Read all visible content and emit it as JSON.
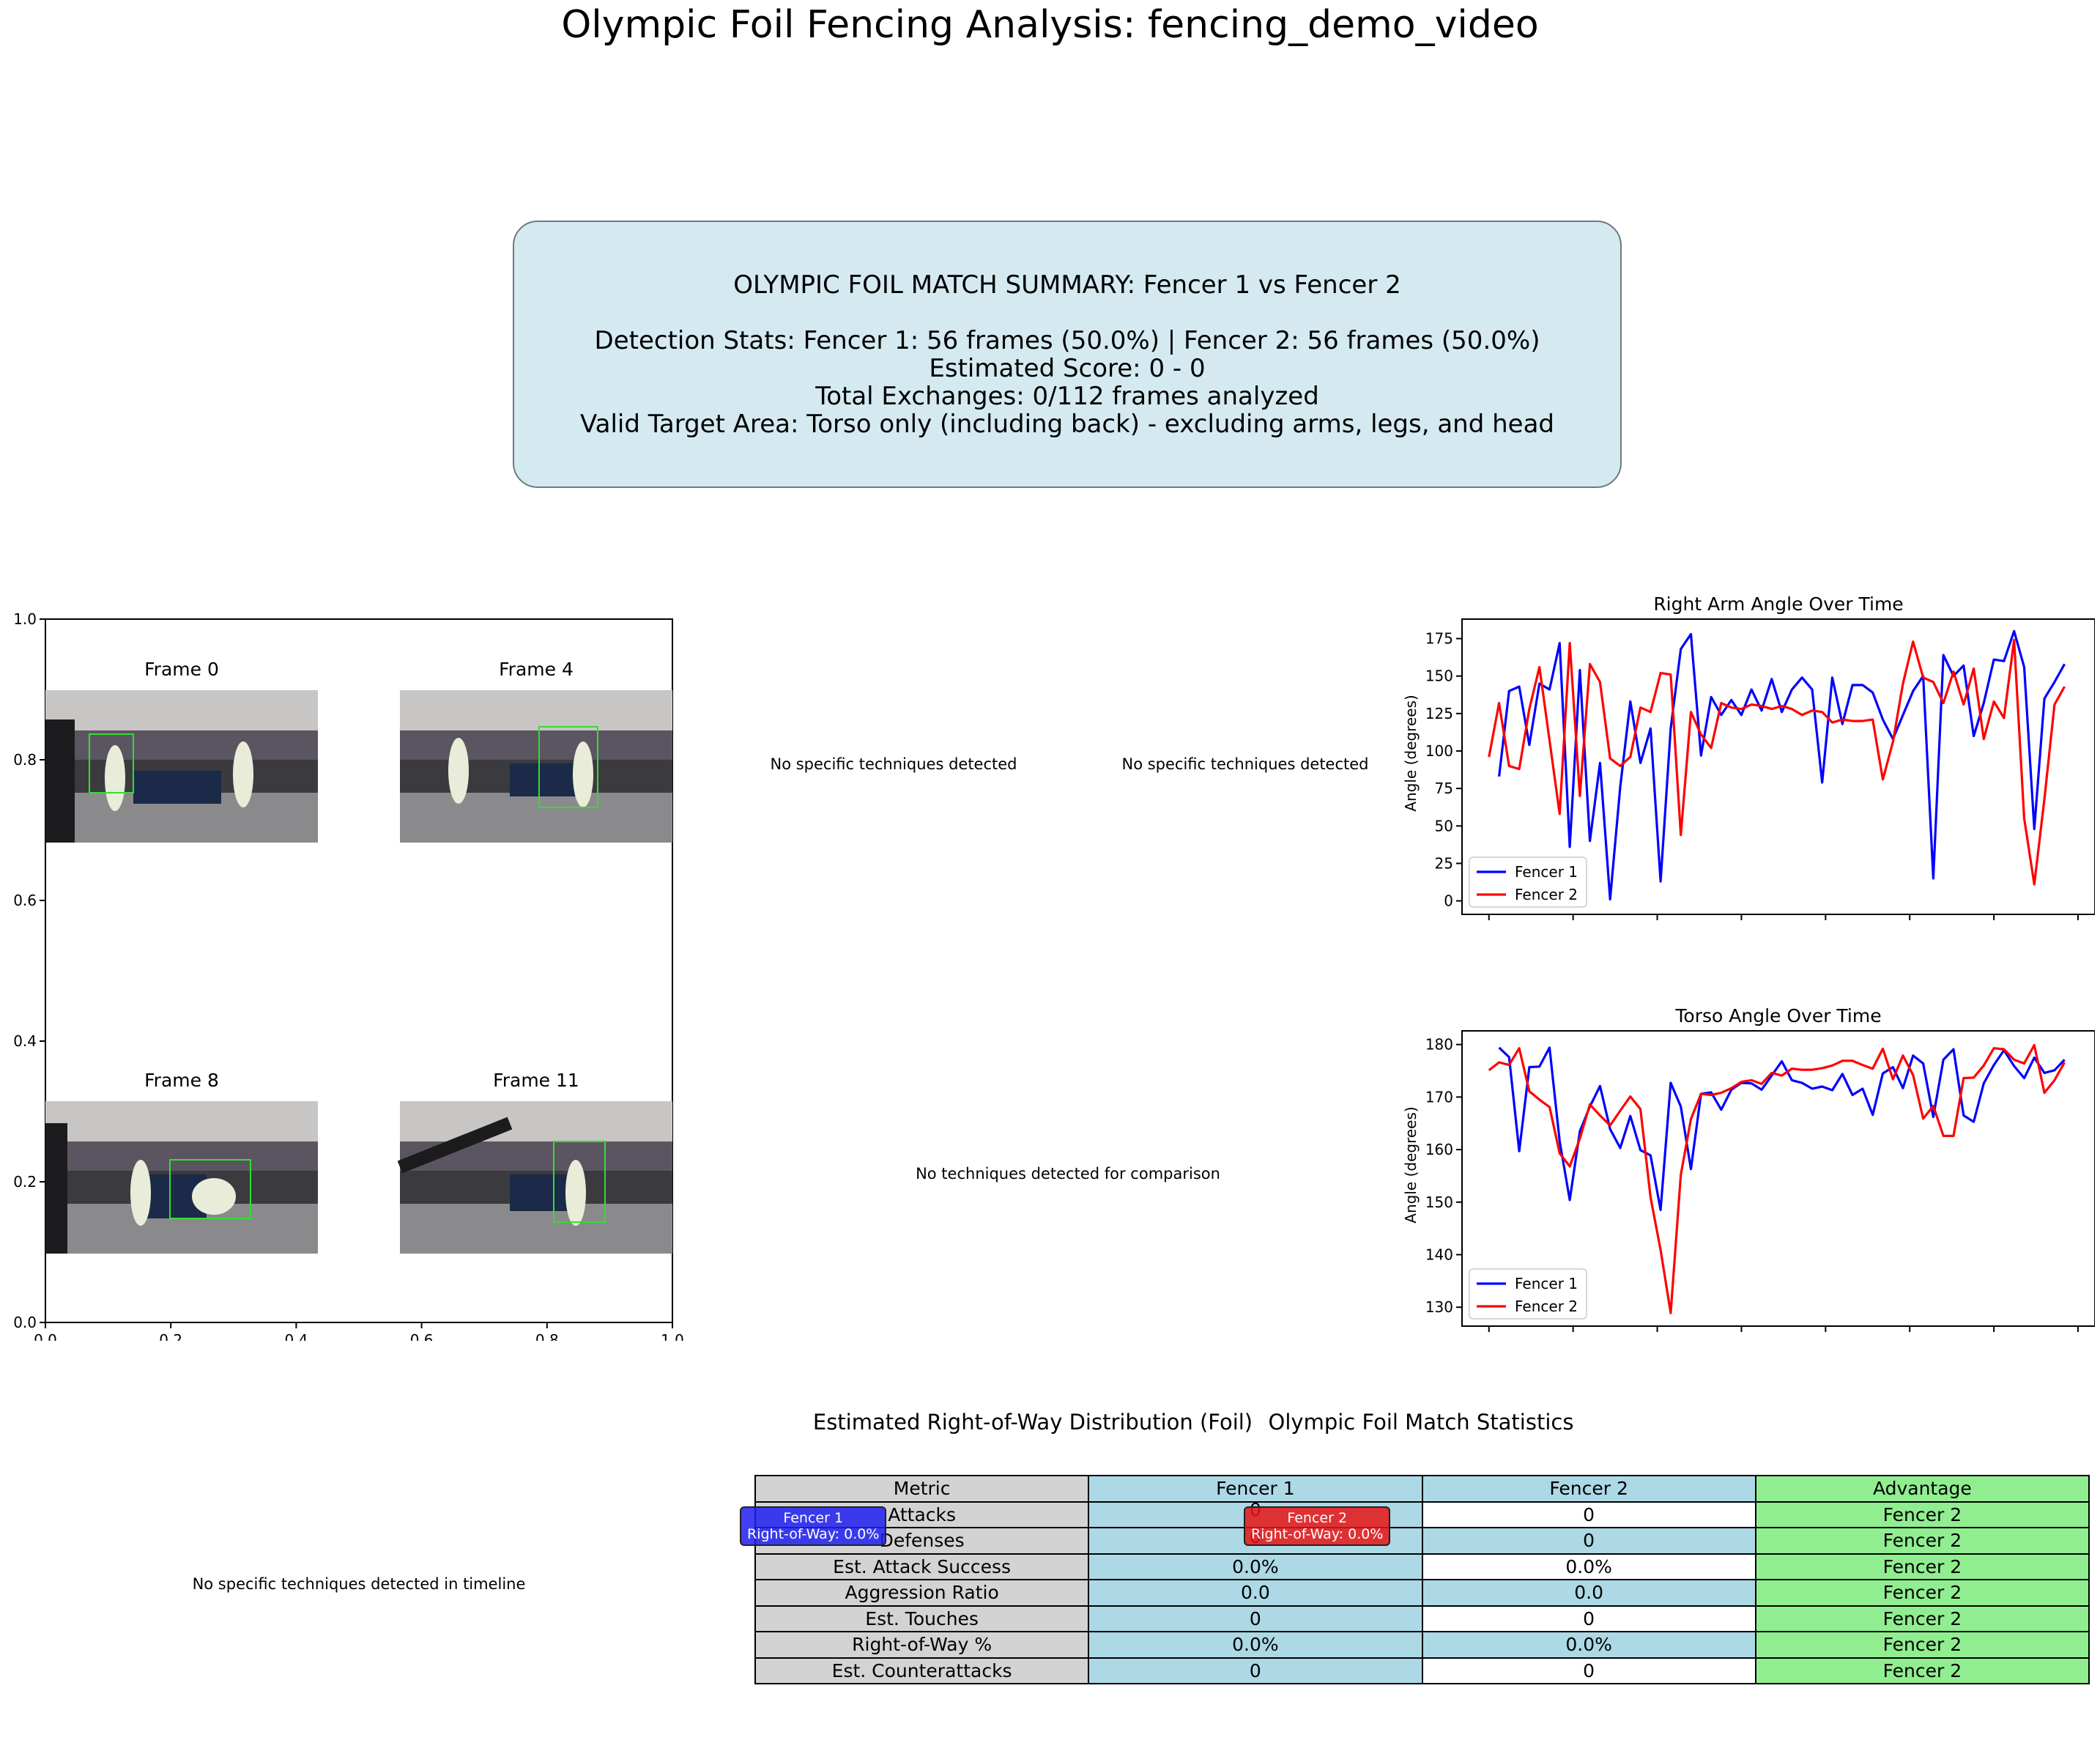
{
  "figure": {
    "title": "Olympic Foil Fencing Analysis: fencing_demo_video"
  },
  "summary": {
    "heading": "OLYMPIC FOIL MATCH SUMMARY:   Fencer 1 vs Fencer 2",
    "detection": "Detection Stats:  Fencer 1: 56 frames (50.0%)   |   Fencer 2: 56 frames (50.0%)",
    "score": "Estimated Score: 0 - 0",
    "exchanges": "Total Exchanges: 0/112 frames analyzed",
    "target": "Valid Target Area: Torso only (including back) - excluding arms, legs, and head"
  },
  "frames_panel": {
    "frames": [
      {
        "label": "Frame 0"
      },
      {
        "label": "Frame 4"
      },
      {
        "label": "Frame 8"
      },
      {
        "label": "Frame 11"
      }
    ],
    "x_ticks": [
      "0.0",
      "0.2",
      "0.4",
      "0.6",
      "0.8",
      "1.0"
    ],
    "y_ticks": [
      "0.0",
      "0.2",
      "0.4",
      "0.6",
      "0.8",
      "1.0"
    ]
  },
  "technique_panels": {
    "fencer1_text": "No specific techniques detected",
    "fencer2_text": "No specific techniques detected",
    "comparison_text": "No techniques detected for comparison",
    "timeline_text": "No specific techniques detected in timeline"
  },
  "row_chart": {
    "title": "Estimated Right-of-Way Distribution (Foil)",
    "badge1_line1": "Fencer 1",
    "badge1_line2": "Right-of-Way: 0.0%",
    "badge2_line1": "Fencer 2",
    "badge2_line2": "Right-of-Way: 0.0%",
    "stray_zero_1": "0",
    "stray_zero_2": "0"
  },
  "stats_table": {
    "title": "Olympic Foil Match Statistics",
    "header": [
      "Metric",
      "Fencer 1",
      "Fencer 2",
      "Advantage"
    ],
    "rows": [
      [
        "Attacks",
        "0",
        "0",
        "Fencer 2"
      ],
      [
        "Defenses",
        "0",
        "0",
        "Fencer 2"
      ],
      [
        "Est. Attack Success",
        "0.0%",
        "0.0%",
        "Fencer 2"
      ],
      [
        "Aggression Ratio",
        "0.0",
        "0.0",
        "Fencer 2"
      ],
      [
        "Est. Touches",
        "0",
        "0",
        "Fencer 2"
      ],
      [
        "Right-of-Way %",
        "0.0%",
        "0.0%",
        "Fencer 2"
      ],
      [
        "Est. Counterattacks",
        "0",
        "0",
        "Fencer 2"
      ]
    ]
  },
  "colors": {
    "fencer1": "#0000ff",
    "fencer2": "#ff0000"
  },
  "chart_data": [
    {
      "type": "line",
      "title": "Right Arm Angle Over Time",
      "xlabel": "",
      "ylabel": "Angle (degrees)",
      "xlim": [
        -8,
        180
      ],
      "ylim": [
        -9,
        188
      ],
      "x_ticks": [
        0,
        25,
        50,
        75,
        100,
        125,
        150,
        175
      ],
      "y_ticks": [
        0,
        25,
        50,
        75,
        100,
        125,
        150,
        175
      ],
      "legend": "lower-left",
      "series": [
        {
          "name": "Fencer 1",
          "color": "#0000ff",
          "x": [
            3,
            6,
            9,
            12,
            15,
            18,
            21,
            24,
            27,
            30,
            33,
            36,
            39,
            42,
            45,
            48,
            51,
            54,
            57,
            60,
            63,
            66,
            69,
            72,
            75,
            78,
            81,
            84,
            87,
            90,
            93,
            96,
            99,
            102,
            105,
            108,
            111,
            114,
            117,
            120,
            123,
            126,
            129,
            132,
            135,
            138,
            141,
            144,
            147,
            150,
            153,
            156,
            159,
            162,
            165,
            168,
            171
          ],
          "y": [
            83,
            140,
            143,
            104,
            145,
            141,
            172,
            36,
            154,
            40,
            92,
            1,
            76,
            133,
            92,
            115,
            13,
            115,
            168,
            178,
            97,
            136,
            124,
            134,
            124,
            141,
            127,
            148,
            126,
            141,
            149,
            141,
            79,
            149,
            118,
            144,
            144,
            139,
            121,
            108,
            124,
            140,
            150,
            15,
            164,
            150,
            157,
            110,
            132,
            161,
            160,
            180,
            156,
            48,
            135,
            146,
            158
          ]
        },
        {
          "name": "Fencer 2",
          "color": "#ff0000",
          "x": [
            0,
            3,
            6,
            9,
            12,
            15,
            18,
            21,
            24,
            27,
            30,
            33,
            36,
            39,
            42,
            45,
            48,
            51,
            54,
            57,
            60,
            63,
            66,
            69,
            72,
            75,
            78,
            81,
            84,
            87,
            90,
            93,
            96,
            99,
            102,
            105,
            108,
            111,
            114,
            117,
            120,
            123,
            126,
            129,
            132,
            135,
            138,
            141,
            144,
            147,
            150,
            153,
            156,
            159,
            162,
            165,
            168,
            171
          ],
          "y": [
            96,
            132,
            90,
            88,
            128,
            156,
            107,
            58,
            172,
            70,
            158,
            146,
            95,
            90,
            96,
            129,
            126,
            152,
            151,
            44,
            126,
            111,
            102,
            132,
            129,
            128,
            131,
            130,
            128,
            130,
            128,
            124,
            127,
            126,
            119,
            121,
            120,
            120,
            121,
            81,
            106,
            145,
            173,
            149,
            146,
            132,
            153,
            131,
            155,
            108,
            133,
            122,
            174,
            55,
            11,
            68,
            131,
            143
          ]
        }
      ]
    },
    {
      "type": "line",
      "title": "Torso Angle Over Time",
      "xlabel": "",
      "ylabel": "Angle (degrees)",
      "xlim": [
        -8,
        180
      ],
      "ylim": [
        126.4,
        182.6
      ],
      "x_ticks": [
        0,
        25,
        50,
        75,
        100,
        125,
        150,
        175
      ],
      "y_ticks": [
        130,
        140,
        150,
        160,
        170,
        180
      ],
      "legend": "lower-left",
      "series": [
        {
          "name": "Fencer 1",
          "color": "#0000ff",
          "x": [
            3,
            6,
            9,
            12,
            15,
            18,
            21,
            24,
            27,
            30,
            33,
            36,
            39,
            42,
            45,
            48,
            51,
            54,
            57,
            60,
            63,
            66,
            69,
            72,
            75,
            78,
            81,
            84,
            87,
            90,
            93,
            96,
            99,
            102,
            105,
            108,
            111,
            114,
            117,
            120,
            123,
            126,
            129,
            132,
            135,
            138,
            141,
            144,
            147,
            150,
            153,
            156,
            159,
            162,
            165,
            168,
            171
          ],
          "y": [
            179.4,
            177.6,
            159.7,
            175.7,
            175.8,
            179.4,
            161.6,
            150.4,
            163.5,
            168.2,
            172.1,
            163.9,
            160.3,
            166.4,
            159.9,
            158.9,
            148.5,
            172.7,
            168.2,
            156.3,
            170.6,
            170.9,
            167.6,
            171.4,
            172.7,
            172.6,
            171.4,
            174.1,
            176.8,
            173.2,
            172.7,
            171.6,
            172.0,
            171.3,
            174.4,
            170.4,
            171.6,
            166.6,
            174.5,
            175.7,
            171.7,
            177.9,
            176.4,
            166.2,
            177.1,
            179.1,
            166.5,
            165.3,
            172.6,
            176.1,
            178.9,
            175.9,
            173.6,
            177.5,
            174.6,
            175.1,
            177.1
          ]
        },
        {
          "name": "Fencer 2",
          "color": "#ff0000",
          "x": [
            0,
            3,
            6,
            9,
            12,
            15,
            18,
            21,
            24,
            27,
            30,
            33,
            36,
            39,
            42,
            45,
            48,
            51,
            54,
            57,
            60,
            63,
            66,
            69,
            72,
            75,
            78,
            81,
            84,
            87,
            90,
            93,
            96,
            99,
            102,
            105,
            108,
            111,
            114,
            117,
            120,
            123,
            126,
            129,
            132,
            135,
            138,
            141,
            144,
            147,
            150,
            153,
            156,
            159,
            162,
            165,
            168,
            171
          ],
          "y": [
            175.1,
            176.6,
            176.1,
            179.3,
            171.1,
            169.5,
            168.1,
            159.3,
            156.8,
            162.1,
            168.6,
            166.5,
            164.6,
            167.4,
            170.1,
            167.7,
            150.9,
            140.9,
            128.9,
            155.2,
            165.8,
            170.6,
            170.4,
            170.8,
            171.7,
            172.9,
            173.2,
            172.5,
            174.6,
            174.1,
            175.4,
            175.2,
            175.2,
            175.5,
            176.0,
            176.9,
            176.9,
            176.1,
            175.4,
            179.2,
            173.4,
            177.9,
            174.2,
            165.9,
            168.3,
            162.6,
            162.6,
            173.6,
            173.7,
            176.0,
            179.3,
            179.1,
            177.1,
            176.4,
            179.9,
            170.8,
            173.2,
            176.6
          ]
        }
      ]
    }
  ]
}
